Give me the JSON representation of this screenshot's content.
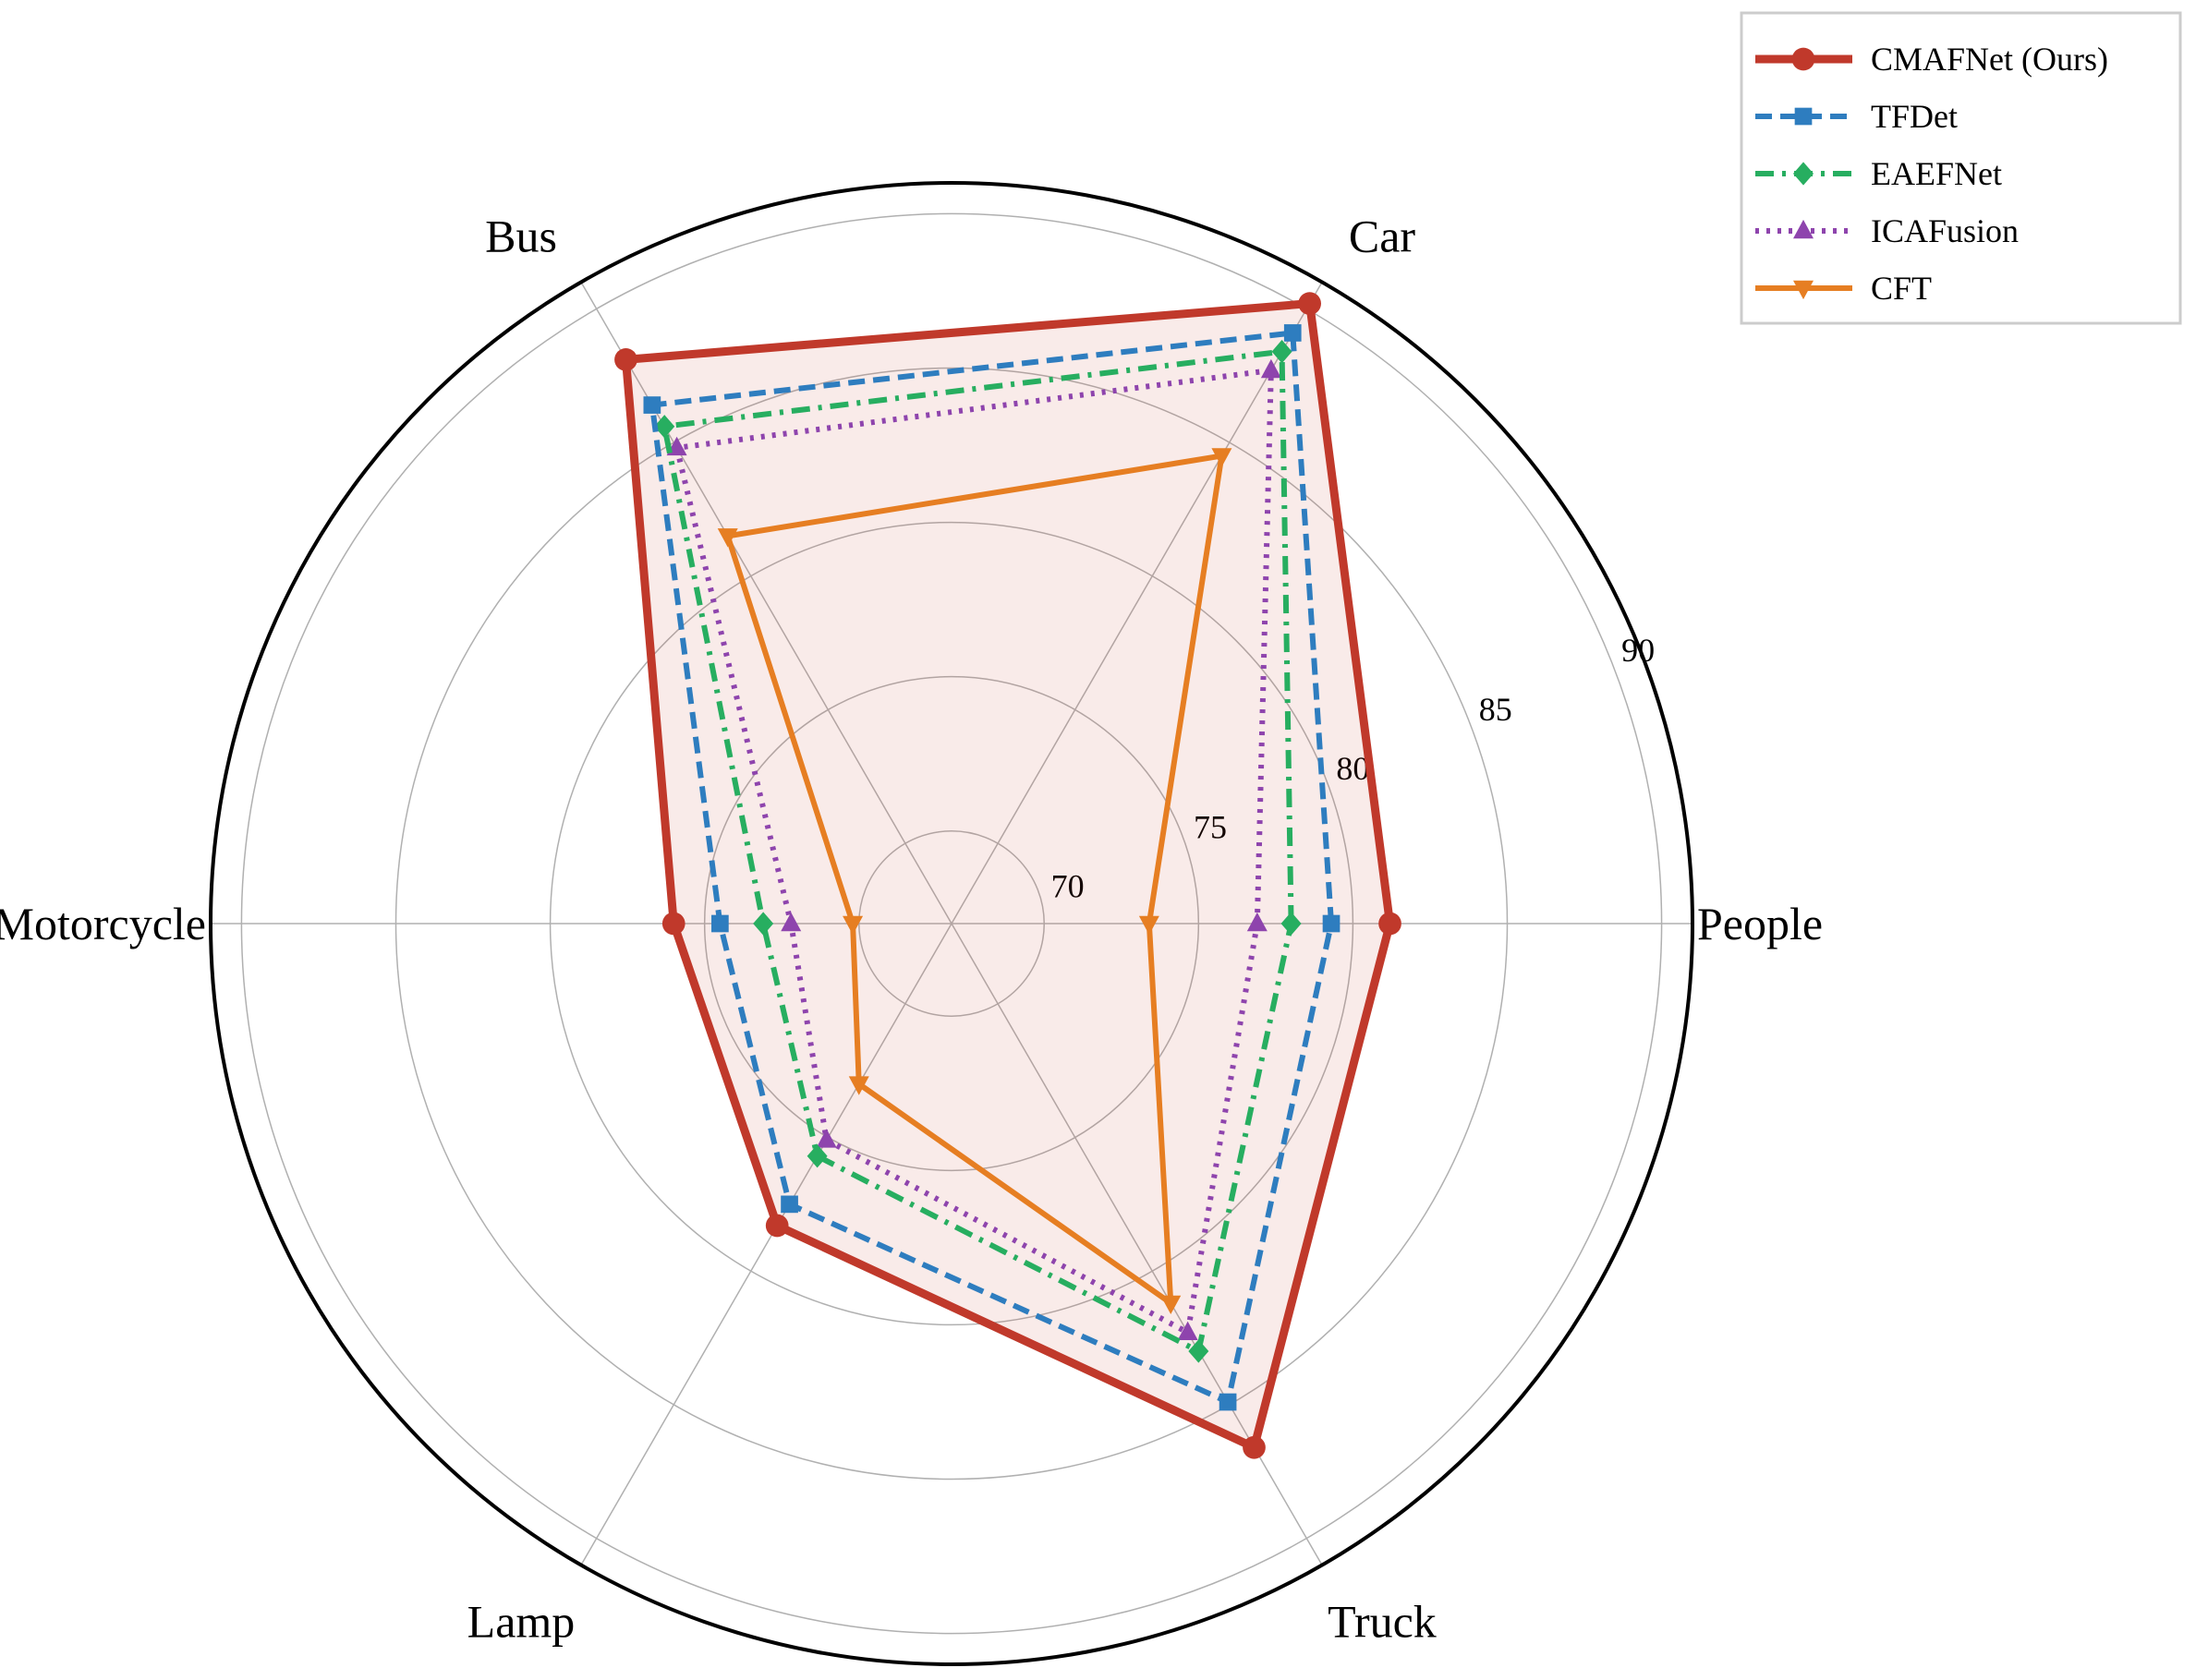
{
  "chart_data": {
    "type": "radar",
    "categories": [
      "People",
      "Car",
      "Bus",
      "Motorcycle",
      "Lamp",
      "Truck"
    ],
    "rlim": [
      67,
      91
    ],
    "ticks": [
      70,
      75,
      80,
      85,
      90
    ],
    "grid": true,
    "legend_position": "top-right",
    "series": [
      {
        "name": "CMAFNet (Ours)",
        "values": [
          81.2,
          90.2,
          88.1,
          76.0,
          78.3,
          86.6
        ],
        "color": "#c0392b",
        "marker": "circle",
        "dash": "solid",
        "fill": true
      },
      {
        "name": "TFDet",
        "values": [
          79.3,
          89.1,
          86.4,
          74.5,
          77.5,
          84.9
        ],
        "color": "#2e7dbf",
        "marker": "square",
        "dash": "dashed",
        "fill": false
      },
      {
        "name": "EAEFNet",
        "values": [
          78.0,
          88.4,
          85.6,
          73.1,
          75.7,
          83.0
        ],
        "color": "#27ae60",
        "marker": "diamond",
        "dash": "dashdot",
        "fill": false
      },
      {
        "name": "ICAFusion",
        "values": [
          76.9,
          87.7,
          84.8,
          72.2,
          75.1,
          82.3
        ],
        "color": "#8e44ad",
        "marker": "triangle-up",
        "dash": "dotted",
        "fill": false
      },
      {
        "name": "CFT",
        "values": [
          73.4,
          84.5,
          81.5,
          70.2,
          73.0,
          81.2
        ],
        "color": "#e67e22",
        "marker": "triangle-down",
        "dash": "solid",
        "fill": false
      }
    ]
  }
}
